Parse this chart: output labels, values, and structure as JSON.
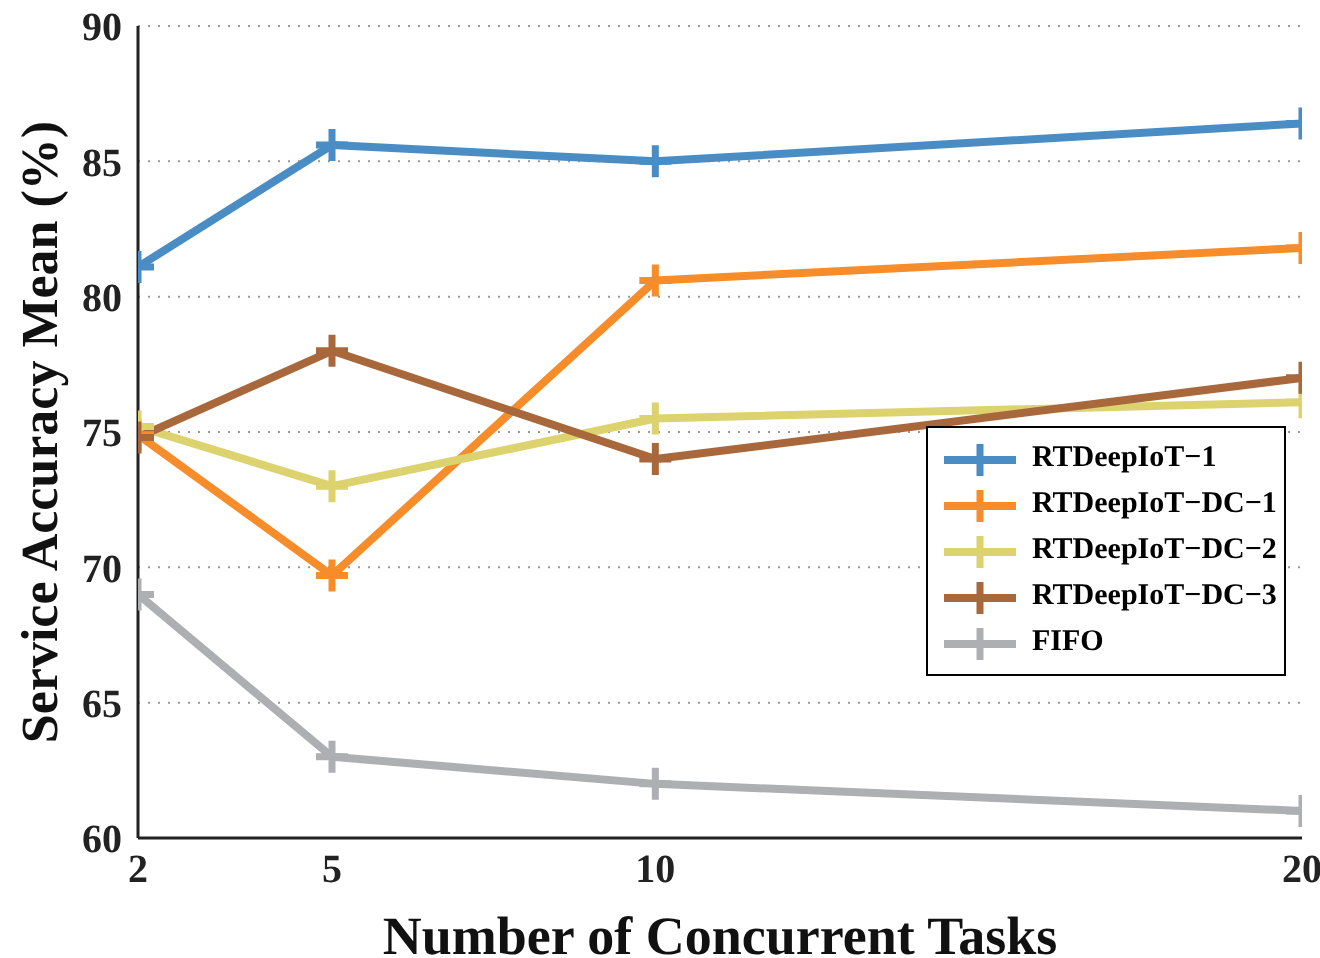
{
  "chart_data": {
    "type": "line",
    "xlabel": "Number of Concurrent Tasks",
    "ylabel": "Service Accuracy Mean (%)",
    "x": [
      2,
      5,
      10,
      20
    ],
    "xlim": [
      2,
      20
    ],
    "xticks": [
      2,
      5,
      10,
      20
    ],
    "ylim": [
      60,
      90
    ],
    "yticks": [
      60,
      65,
      70,
      75,
      80,
      85,
      90
    ],
    "grid": "y",
    "legend": "right",
    "marker": "cross",
    "line_style": "solid",
    "series": [
      {
        "name": "RTDeepIoT−1",
        "color": "#4a8cc4",
        "values": [
          81.1,
          85.6,
          85,
          86.4
        ]
      },
      {
        "name": "RTDeepIoT−DC−1",
        "color": "#f78d2a",
        "values": [
          74.9,
          69.7,
          80.6,
          81.8
        ]
      },
      {
        "name": "RTDeepIoT−DC−2",
        "color": "#dcd26e",
        "values": [
          75.2,
          73,
          75.5,
          76.1
        ]
      },
      {
        "name": "RTDeepIoT−DC−3",
        "color": "#a8683c",
        "values": [
          74.8,
          78,
          74,
          77
        ]
      },
      {
        "name": "FIFO",
        "color": "#aeafb3",
        "values": [
          69,
          63,
          62,
          61
        ]
      }
    ]
  }
}
